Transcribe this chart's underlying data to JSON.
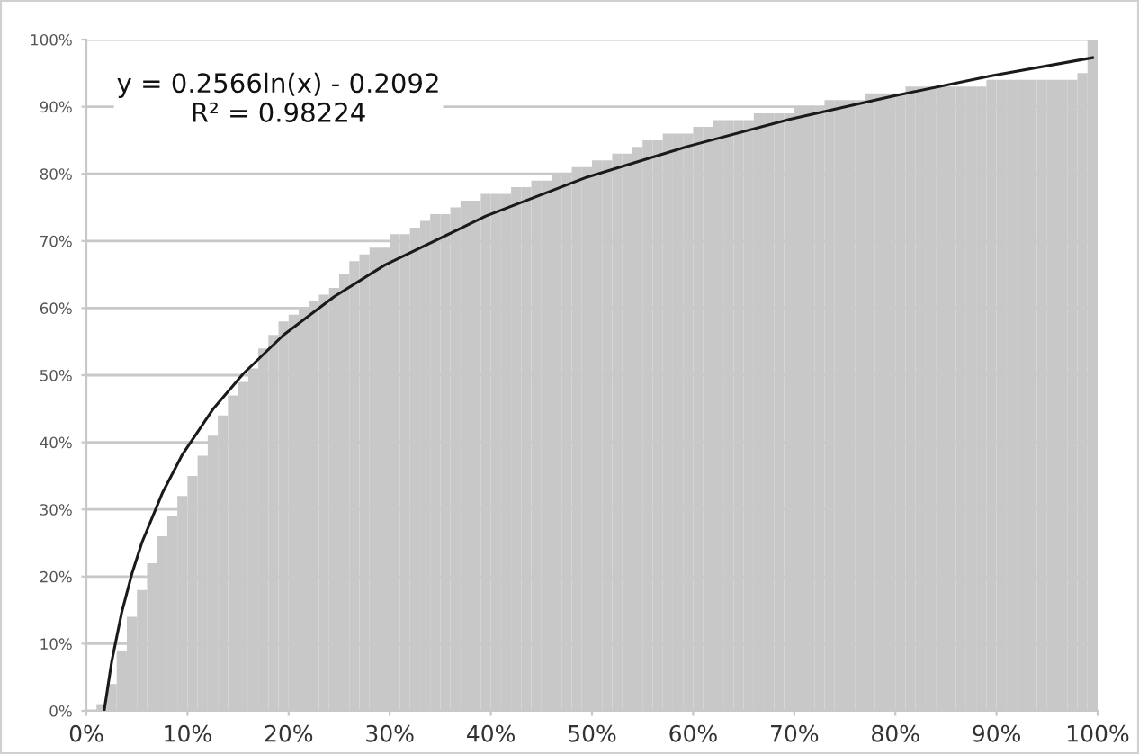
{
  "chart_data": {
    "type": "bar",
    "annotations": [
      "y = 0.2566ln(x) - 0.2092\nR² = 0.98224"
    ],
    "series": [
      {
        "color": "#c8c8c8",
        "x": [
          0.5,
          1.5,
          2.5,
          3.5,
          4.5,
          5.5,
          6.5,
          7.5,
          8.5,
          9.5,
          10.5,
          11.5,
          12.5,
          13.5,
          14.5,
          15.5,
          16.5,
          17.5,
          18.5,
          19.5,
          20.5,
          21.5,
          22.5,
          23.5,
          24.5,
          25.5,
          26.5,
          27.5,
          28.5,
          29.5,
          30.5,
          31.5,
          32.5,
          33.5,
          34.5,
          35.5,
          36.5,
          37.5,
          38.5,
          39.5,
          40.5,
          41.5,
          42.5,
          43.5,
          44.5,
          45.5,
          46.5,
          47.5,
          48.5,
          49.5,
          50.5,
          51.5,
          52.5,
          53.5,
          54.5,
          55.5,
          56.5,
          57.5,
          58.5,
          59.5,
          60.5,
          61.5,
          62.5,
          63.5,
          64.5,
          65.5,
          66.5,
          67.5,
          68.5,
          69.5,
          70.5,
          71.5,
          72.5,
          73.5,
          74.5,
          75.5,
          76.5,
          77.5,
          78.5,
          79.5,
          80.5,
          81.5,
          82.5,
          83.5,
          84.5,
          85.5,
          86.5,
          87.5,
          88.5,
          89.5,
          90.5,
          91.5,
          92.5,
          93.5,
          94.5,
          95.5,
          96.5,
          97.5,
          98.5,
          99.5
        ],
        "values": [
          0,
          1,
          4,
          9,
          14,
          18,
          22,
          26,
          29,
          32,
          35,
          38,
          41,
          44,
          47,
          49,
          51,
          54,
          56,
          58,
          59,
          60,
          61,
          62,
          63,
          65,
          67,
          68,
          69,
          69,
          71,
          71,
          72,
          73,
          74,
          74,
          75,
          76,
          76,
          77,
          77,
          77,
          78,
          78,
          79,
          79,
          80,
          80,
          81,
          81,
          82,
          82,
          83,
          83,
          84,
          85,
          85,
          86,
          86,
          86,
          87,
          87,
          88,
          88,
          88,
          88,
          89,
          89,
          89,
          89,
          90,
          90,
          90,
          91,
          91,
          91,
          91,
          92,
          92,
          92,
          92,
          93,
          93,
          93,
          93,
          93,
          93,
          93,
          93,
          94,
          94,
          94,
          94,
          94,
          94,
          94,
          94,
          94,
          95,
          100
        ]
      },
      {
        "type": "line",
        "color": "#1a1a1a",
        "x": [
          1.76,
          2.5,
          3.5,
          4.5,
          5.5,
          7.5,
          9.5,
          12.5,
          15.5,
          19.5,
          24.5,
          29.5,
          39.5,
          49.5,
          59.5,
          69.5,
          79.5,
          89.5,
          99.5
        ],
        "values": [
          0,
          7.3,
          14.7,
          20.4,
          25.1,
          32.4,
          38.2,
          44.9,
          50.2,
          56.0,
          61.7,
          66.4,
          73.7,
          79.5,
          84.1,
          88.1,
          91.5,
          94.6,
          97.3
        ]
      }
    ],
    "xlim": [
      0,
      100
    ],
    "ylim": [
      0,
      100
    ],
    "xticks": [
      {
        "value": 0,
        "label": "0%"
      },
      {
        "value": 10,
        "label": "10%"
      },
      {
        "value": 20,
        "label": "20%"
      },
      {
        "value": 30,
        "label": "30%"
      },
      {
        "value": 40,
        "label": "40%"
      },
      {
        "value": 50,
        "label": "50%"
      },
      {
        "value": 60,
        "label": "60%"
      },
      {
        "value": 70,
        "label": "70%"
      },
      {
        "value": 80,
        "label": "80%"
      },
      {
        "value": 90,
        "label": "90%"
      },
      {
        "value": 100,
        "label": "100%"
      }
    ],
    "yticks": [
      {
        "value": 0,
        "label": "0%"
      },
      {
        "value": 10,
        "label": "10%"
      },
      {
        "value": 20,
        "label": "20%"
      },
      {
        "value": 30,
        "label": "30%"
      },
      {
        "value": 40,
        "label": "40%"
      },
      {
        "value": 50,
        "label": "50%"
      },
      {
        "value": 60,
        "label": "60%"
      },
      {
        "value": 70,
        "label": "70%"
      },
      {
        "value": 80,
        "label": "80%"
      },
      {
        "value": 90,
        "label": "90%"
      },
      {
        "value": 100,
        "label": "100%"
      }
    ],
    "grid": "y"
  }
}
